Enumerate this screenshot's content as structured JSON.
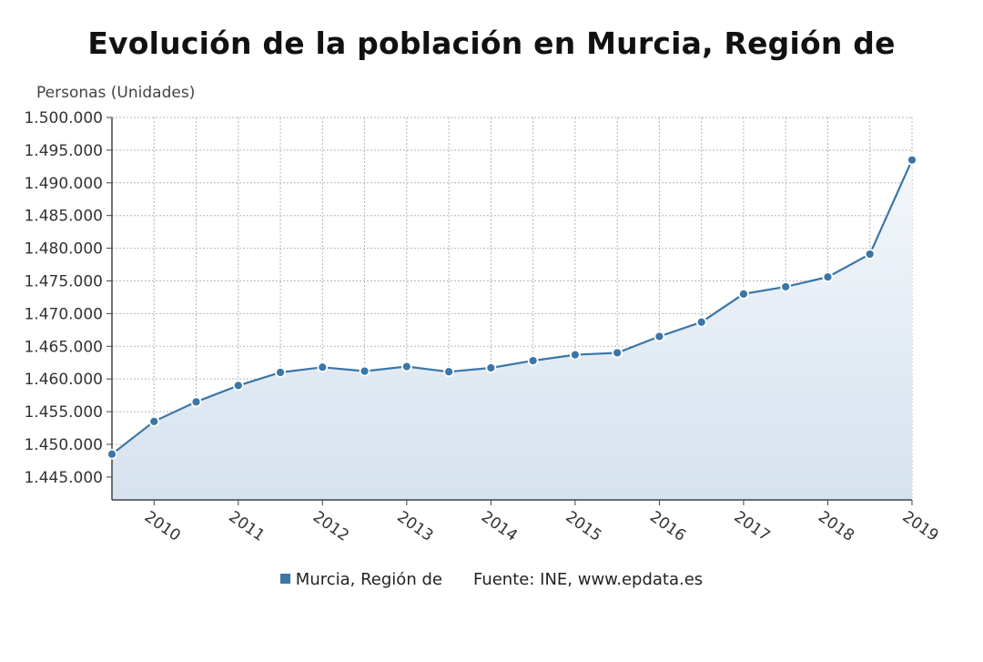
{
  "colors": {
    "line": "#3b76a8",
    "grid": "#b5b5b5",
    "axis": "#444444",
    "fill_top": "#f4f7fb",
    "fill_bottom": "#d6e2ee"
  },
  "chart_data": {
    "type": "line",
    "title": "Evolución de la población en Murcia, Región de",
    "ylabel": "Personas (Unidades)",
    "xlabel": "",
    "ylim": [
      1441500,
      1500000
    ],
    "yticks": [
      1445000,
      1450000,
      1455000,
      1460000,
      1465000,
      1470000,
      1475000,
      1480000,
      1485000,
      1490000,
      1495000,
      1500000
    ],
    "ytick_labels": [
      "1.445.000",
      "1.450.000",
      "1.455.000",
      "1.460.000",
      "1.465.000",
      "1.470.000",
      "1.475.000",
      "1.480.000",
      "1.485.000",
      "1.490.000",
      "1.495.000",
      "1.500.000"
    ],
    "xlim": [
      2009.5,
      2019.0
    ],
    "xticks": [
      2010,
      2011,
      2012,
      2013,
      2014,
      2015,
      2016,
      2017,
      2018,
      2019
    ],
    "xtick_labels": [
      "2010",
      "2011",
      "2012",
      "2013",
      "2014",
      "2015",
      "2016",
      "2017",
      "2018",
      "2019"
    ],
    "grid": true,
    "series": [
      {
        "name": "Murcia, Región de",
        "x": [
          2009.5,
          2010.0,
          2010.5,
          2011.0,
          2011.5,
          2012.0,
          2012.5,
          2013.0,
          2013.5,
          2014.0,
          2014.5,
          2015.0,
          2015.5,
          2016.0,
          2016.5,
          2017.0,
          2017.5,
          2018.0,
          2018.5,
          2019.0
        ],
        "values": [
          1448500,
          1453500,
          1456500,
          1459000,
          1461000,
          1461800,
          1461200,
          1461900,
          1461100,
          1461700,
          1462800,
          1463700,
          1464000,
          1466500,
          1468700,
          1473000,
          1474100,
          1475600,
          1479100,
          1493500
        ]
      }
    ]
  },
  "legend": {
    "series_label": "Murcia, Región de",
    "source": "Fuente: INE, www.epdata.es"
  }
}
